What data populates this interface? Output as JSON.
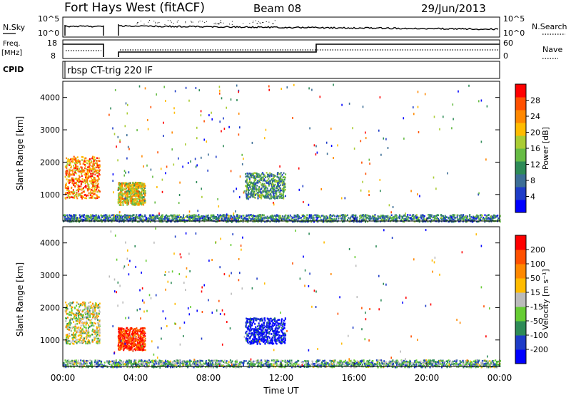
{
  "header": {
    "station": "Fort Hays West (fitACF)",
    "beam": "Beam 08",
    "date": "29/Jun/2013"
  },
  "strip_panels": {
    "nsky_label": "N.Sky",
    "nsky_ticks": [
      "10^5",
      "10^0"
    ],
    "nsearch_label": "N.Search",
    "nsearch_ticks": [
      "10^5",
      "10^0"
    ],
    "freq_label_line1": "Freq.",
    "freq_label_line2": "[MHz]",
    "freq_ticks": [
      "18",
      "8"
    ],
    "nave_label": "Nave",
    "nave_ticks": [
      "60",
      "0"
    ],
    "cpid_label": "CPID",
    "cpid_text": "rbsp CT-trig 220 IF"
  },
  "chart_data": [
    {
      "type": "heatmap",
      "name": "power",
      "ylabel": "Slant Range [km]",
      "y_ticks": [
        "4000",
        "3000",
        "2000",
        "1000"
      ],
      "xlim": [
        0,
        24
      ],
      "ylim": [
        180,
        4500
      ],
      "colorbar_label": "Power [dB]",
      "colorbar_ticks": [
        "28",
        "24",
        "20",
        "16",
        "12",
        "8",
        "4"
      ],
      "colorbar_colors": [
        "#0000ff",
        "#1e3cc8",
        "#3c6e96",
        "#2e8b57",
        "#66bb44",
        "#aacc33",
        "#ffbb00",
        "#ff8800",
        "#ff5000",
        "#ff0000"
      ],
      "echo_regions": [
        {
          "t0": 0.1,
          "t1": 2.0,
          "r0": 900,
          "r1": 2200,
          "level": 0.75
        },
        {
          "t0": 3.0,
          "t1": 4.5,
          "r0": 700,
          "r1": 1400,
          "level": 0.6
        },
        {
          "t0": 10.0,
          "t1": 12.2,
          "r0": 900,
          "r1": 1700,
          "level": 0.35
        },
        {
          "t0": 0.0,
          "t1": 24.0,
          "r0": 180,
          "r1": 400,
          "level": 0.3
        }
      ]
    },
    {
      "type": "heatmap",
      "name": "velocity",
      "xlabel": "Time UT",
      "ylabel": "Slant Range [km]",
      "x_ticks": [
        "00:00",
        "04:00",
        "08:00",
        "12:00",
        "16:00",
        "20:00",
        "00:00"
      ],
      "y_ticks": [
        "4000",
        "3000",
        "2000",
        "1000"
      ],
      "xlim": [
        0,
        24
      ],
      "ylim": [
        180,
        4500
      ],
      "colorbar_label": "Velocity [m s⁻¹]",
      "colorbar_ticks": [
        "200",
        "100",
        "50",
        "15",
        "-15",
        "-50",
        "-100",
        "-200"
      ],
      "colorbar_colors": [
        "#0000ff",
        "#1e3cc8",
        "#2e8b57",
        "#66cc33",
        "#bbbbbb",
        "#ffbb00",
        "#ff8800",
        "#ff5000",
        "#ff0000"
      ],
      "echo_regions": [
        {
          "t0": 0.1,
          "t1": 2.0,
          "r0": 900,
          "r1": 2200,
          "level": 0.5
        },
        {
          "t0": 3.0,
          "t1": 4.5,
          "r0": 700,
          "r1": 1400,
          "level": 0.9
        },
        {
          "t0": 10.0,
          "t1": 12.2,
          "r0": 900,
          "r1": 1700,
          "level": 0.05
        },
        {
          "t0": 0.0,
          "t1": 24.0,
          "r0": 180,
          "r1": 400,
          "level": 0.35
        }
      ]
    }
  ]
}
